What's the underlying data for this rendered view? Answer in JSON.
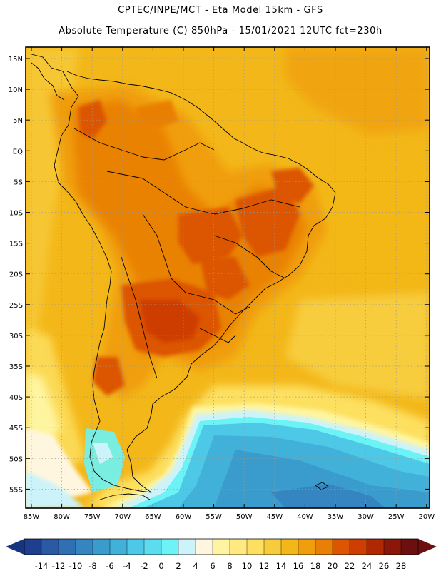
{
  "title": {
    "line1": "CPTEC/INPE/MCT -  Eta Model 15km - GFS",
    "line2": "Absolute Temperature (C) 850hPa - 15/01/2021 12UTC fct=230h"
  },
  "lat_labels": [
    "15N",
    "10N",
    "5N",
    "EQ",
    "5S",
    "10S",
    "15S",
    "20S",
    "25S",
    "30S",
    "35S",
    "40S",
    "45S",
    "50S",
    "55S"
  ],
  "lon_labels": [
    "85W",
    "80W",
    "75W",
    "70W",
    "65W",
    "60W",
    "55W",
    "50W",
    "45W",
    "40W",
    "35W",
    "30W",
    "25W",
    "20W"
  ],
  "colorbar": {
    "labels": [
      "-14",
      "-12",
      "-10",
      "-8",
      "-6",
      "-4",
      "-2",
      "0",
      "2",
      "4",
      "6",
      "8",
      "10",
      "12",
      "14",
      "16",
      "18",
      "20",
      "22",
      "24",
      "26",
      "28"
    ],
    "colors": [
      "#1e3f8f",
      "#2a5aa3",
      "#2f6fb3",
      "#3485c0",
      "#3a9ccd",
      "#41b1d9",
      "#4dc8e6",
      "#5cdcef",
      "#6bf3f6",
      "#ccf3fa",
      "#fff6df",
      "#fff5a0",
      "#ffe980",
      "#fde060",
      "#f7cc3c",
      "#f3b719",
      "#f09e0b",
      "#e97f06",
      "#dc5500",
      "#cd3e00",
      "#b02800",
      "#8a1708",
      "#6b0f10"
    ],
    "under_color": "#17347f",
    "over_color": "#6b0f10"
  },
  "palette": {
    "cold_ocean": "#3a9ccd",
    "cool_ocean": "#5cdcef",
    "warm_base": "#f3b719",
    "hot": "#e97f06",
    "very_hot": "#dc5500",
    "extreme": "#cd3e00"
  }
}
